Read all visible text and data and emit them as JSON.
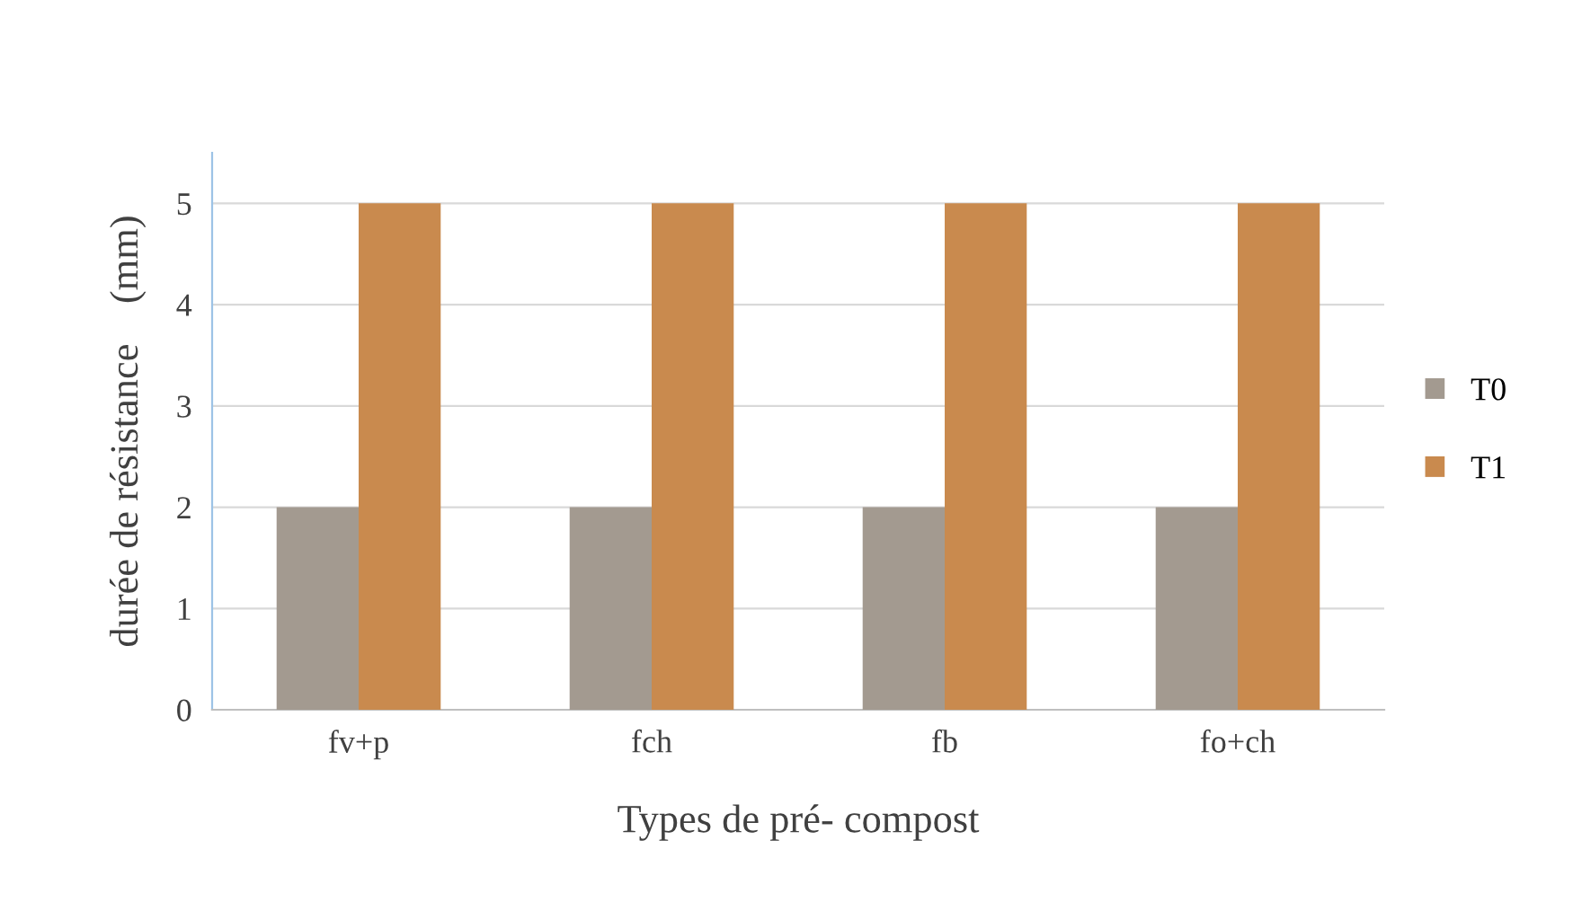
{
  "chart_data": {
    "type": "bar",
    "xlabel": "Types de pré- compost",
    "ylabel": "durée de résistance    (mm)",
    "categories": [
      "fv+p",
      "fch",
      "fb",
      "fo+ch"
    ],
    "series": [
      {
        "name": "T0",
        "color": "#a39a90",
        "values": [
          2,
          2,
          2,
          2
        ]
      },
      {
        "name": "T1",
        "color": "#c98a4e",
        "values": [
          5,
          5,
          5,
          5
        ]
      }
    ],
    "ylim": [
      0,
      5.5
    ],
    "yticks": [
      0,
      1,
      2,
      3,
      4,
      5
    ],
    "grid": "y",
    "legend": "right"
  }
}
